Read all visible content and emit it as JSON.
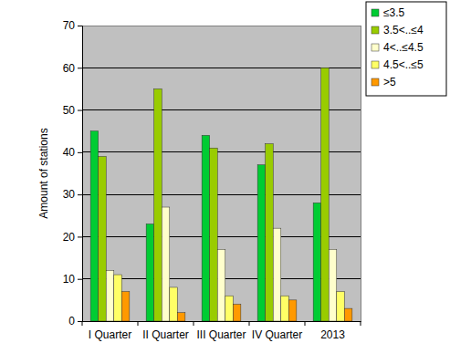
{
  "chart_data": {
    "type": "bar",
    "y_label": "Amount of stations",
    "categories": [
      "I Quarter",
      "II Quarter",
      "III Quarter",
      "IV Quarter",
      "2013"
    ],
    "series": [
      {
        "name": "≤3.5",
        "color": "#00cc33",
        "values": [
          45,
          23,
          44,
          37,
          28
        ]
      },
      {
        "name": "3.5<..≤4",
        "color": "#99cc00",
        "values": [
          39,
          55,
          41,
          42,
          60
        ]
      },
      {
        "name": "4<..≤4.5",
        "color": "#ffffcc",
        "values": [
          12,
          27,
          17,
          22,
          17
        ]
      },
      {
        "name": "4.5<..≤5",
        "color": "#ffff66",
        "values": [
          11,
          8,
          6,
          6,
          7
        ]
      },
      {
        "name": ">5",
        "color": "#ff9900",
        "values": [
          7,
          2,
          4,
          5,
          3
        ]
      }
    ],
    "ylim": [
      0,
      70
    ],
    "yticks": [
      0,
      10,
      20,
      30,
      40,
      50,
      60,
      70
    ],
    "grid": true,
    "legend": "top-right"
  }
}
